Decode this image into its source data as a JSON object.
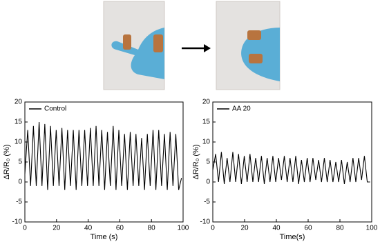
{
  "chart_data": [
    {
      "type": "line",
      "ylabel": "ΔR/R₀ (%)",
      "xlabel": "Time (s)",
      "x": [
        0,
        1.8,
        3.6,
        5.4,
        7.2,
        9,
        10.8,
        12.6,
        14.4,
        16.2,
        18,
        19.8,
        21.6,
        23.4,
        25.2,
        27,
        28.8,
        30.6,
        32.4,
        34.2,
        36,
        37.8,
        39.6,
        41.4,
        43.2,
        45,
        46.8,
        48.6,
        50.4,
        52.2,
        54,
        55.8,
        57.6,
        59.4,
        61.2,
        63,
        64.8,
        66.6,
        68.4,
        70.2,
        72,
        73.8,
        75.6,
        77.4,
        79.2,
        81,
        82.8,
        84.6,
        86.4,
        88.2,
        90,
        91.8,
        93.6,
        95.4,
        97.2,
        99
      ],
      "series": [
        {
          "name": "Control",
          "color": "#000000",
          "values": [
            2,
            13,
            -1,
            14,
            -1,
            15,
            -1,
            14.5,
            -2,
            14,
            -1,
            13,
            -1,
            13.5,
            -2,
            13,
            -1,
            13,
            -2,
            13,
            -1,
            13,
            -1,
            13.5,
            -1,
            14,
            -1,
            13,
            -2,
            12.5,
            -1,
            14,
            -2,
            13,
            -1,
            12,
            -2,
            12.5,
            -1,
            12,
            -1,
            11,
            -2,
            12,
            -1,
            13,
            -2,
            13,
            -1,
            12,
            -2,
            12.5,
            -1,
            12,
            -2,
            1
          ]
        }
      ],
      "xlim": [
        0,
        100
      ],
      "xticks": [
        0,
        20,
        40,
        60,
        80,
        100
      ],
      "ylim": [
        -10,
        20
      ],
      "yticks": [
        -10,
        -5,
        0,
        5,
        10,
        15,
        20
      ],
      "legend": "upper left"
    },
    {
      "type": "line",
      "ylabel": "ΔR/R₀ (%)",
      "xlabel": "Time(s)",
      "x": [
        0,
        1.8,
        3.6,
        5.4,
        7.2,
        9,
        10.8,
        12.6,
        14.4,
        16.2,
        18,
        19.8,
        21.6,
        23.4,
        25.2,
        27,
        28.8,
        30.6,
        32.4,
        34.2,
        36,
        37.8,
        39.6,
        41.4,
        43.2,
        45,
        46.8,
        48.6,
        50.4,
        52.2,
        54,
        55.8,
        57.6,
        59.4,
        61.2,
        63,
        64.8,
        66.6,
        68.4,
        70.2,
        72,
        73.8,
        75.6,
        77.4,
        79.2,
        81,
        82.8,
        84.6,
        86.4,
        88.2,
        90,
        91.8,
        93.6,
        95.4,
        97.2,
        99
      ],
      "series": [
        {
          "name": "AA 20",
          "color": "#000000",
          "values": [
            3,
            7,
            0,
            7.5,
            -0.5,
            6,
            0,
            7.5,
            0,
            7,
            -0.5,
            6.5,
            0,
            7,
            0,
            6,
            0,
            6.5,
            -0.5,
            6,
            0,
            6.5,
            0,
            6,
            0.5,
            6.5,
            0,
            6,
            0,
            6.5,
            -0.5,
            5.5,
            0,
            6,
            0,
            6,
            0.5,
            5.5,
            0,
            6,
            0,
            5.5,
            0,
            5,
            0,
            5.5,
            -0.5,
            5,
            0,
            6,
            0,
            6,
            0.5,
            6.5,
            0,
            0
          ]
        }
      ],
      "xlim": [
        0,
        100
      ],
      "xticks": [
        0,
        20,
        40,
        60,
        80,
        100
      ],
      "ylim": [
        -10,
        20
      ],
      "yticks": [
        -10,
        -5,
        0,
        5,
        10,
        15,
        20
      ],
      "legend": "upper left"
    }
  ]
}
